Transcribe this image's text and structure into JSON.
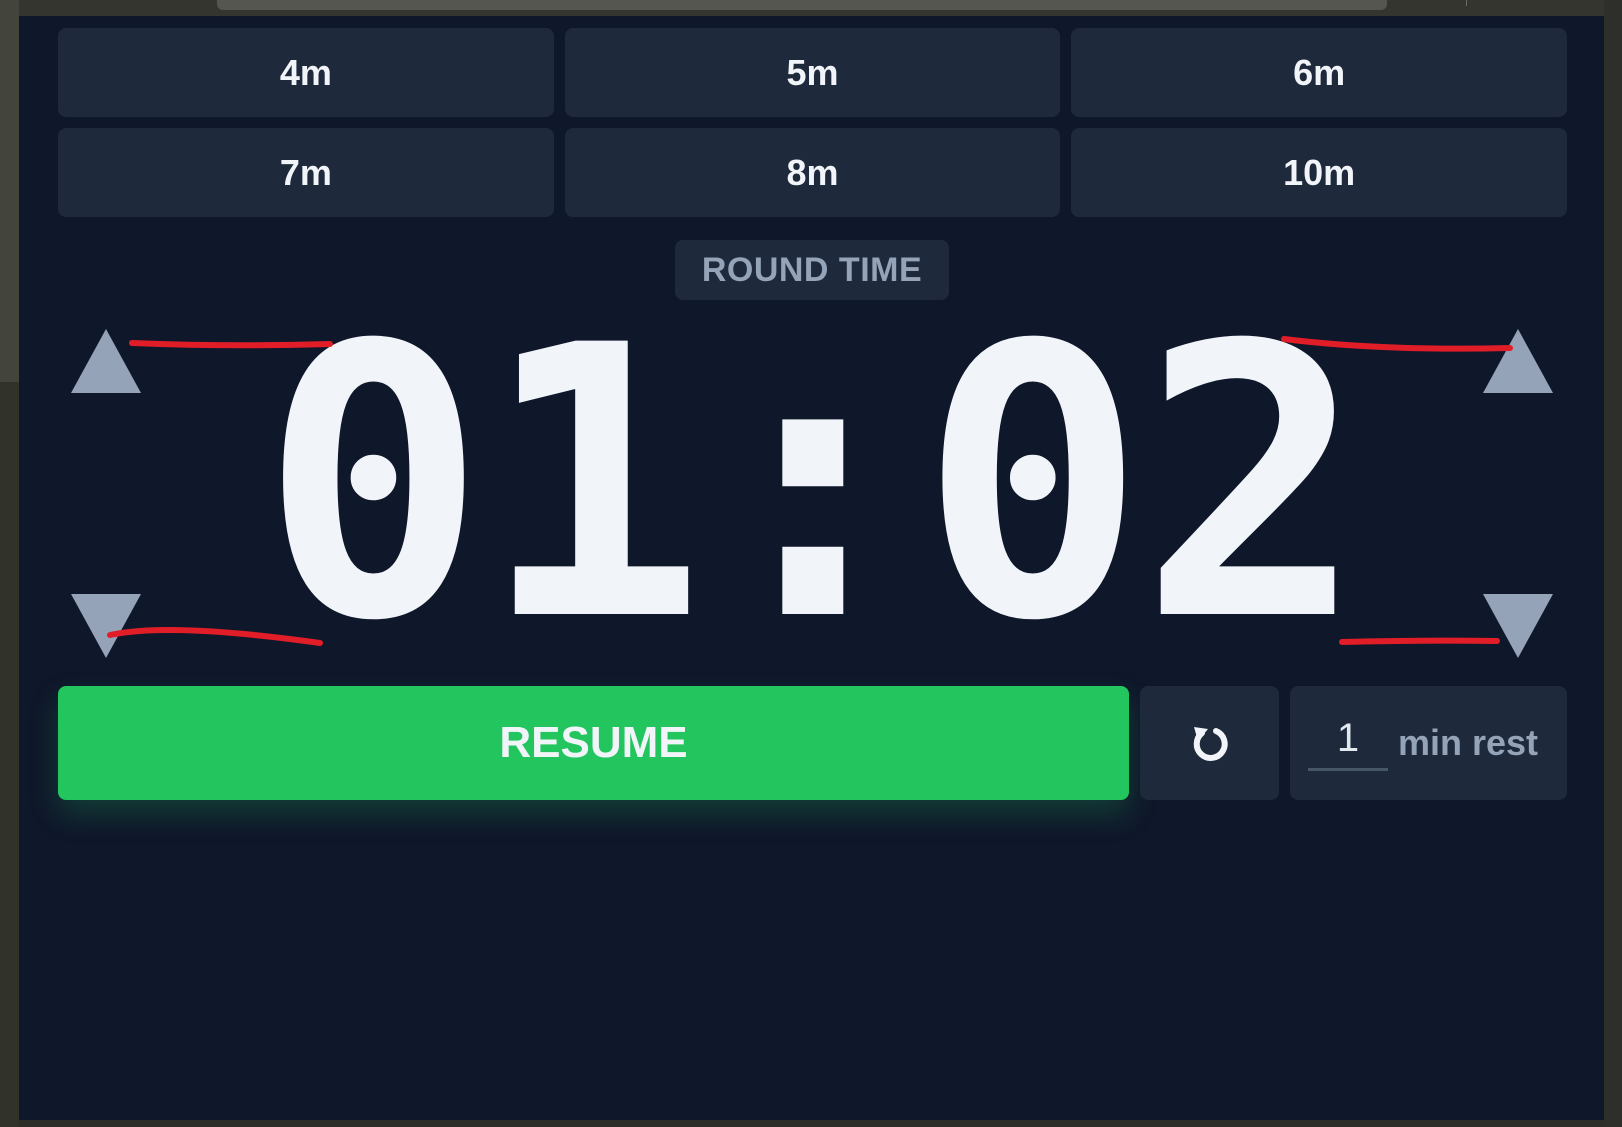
{
  "presets": [
    {
      "label": "4m"
    },
    {
      "label": "5m"
    },
    {
      "label": "6m"
    },
    {
      "label": "7m"
    },
    {
      "label": "8m"
    },
    {
      "label": "10m"
    }
  ],
  "round_label": "ROUND TIME",
  "timer": {
    "minutes": "01",
    "separator": ":",
    "seconds": "02"
  },
  "controls": {
    "resume_label": "RESUME",
    "rest_minutes": "1",
    "rest_label": "min rest"
  },
  "icons": {
    "minutes_up": "triangle-up-icon",
    "minutes_down": "triangle-down-icon",
    "seconds_up": "triangle-up-icon",
    "seconds_down": "triangle-down-icon",
    "reset": "reset-arrow-icon"
  },
  "colors": {
    "background": "#0f172a",
    "card": "#1e293b",
    "text": "#f1f5f9",
    "muted": "#94a3b8",
    "accent": "#22c55e",
    "annotation": "#e11d28"
  }
}
